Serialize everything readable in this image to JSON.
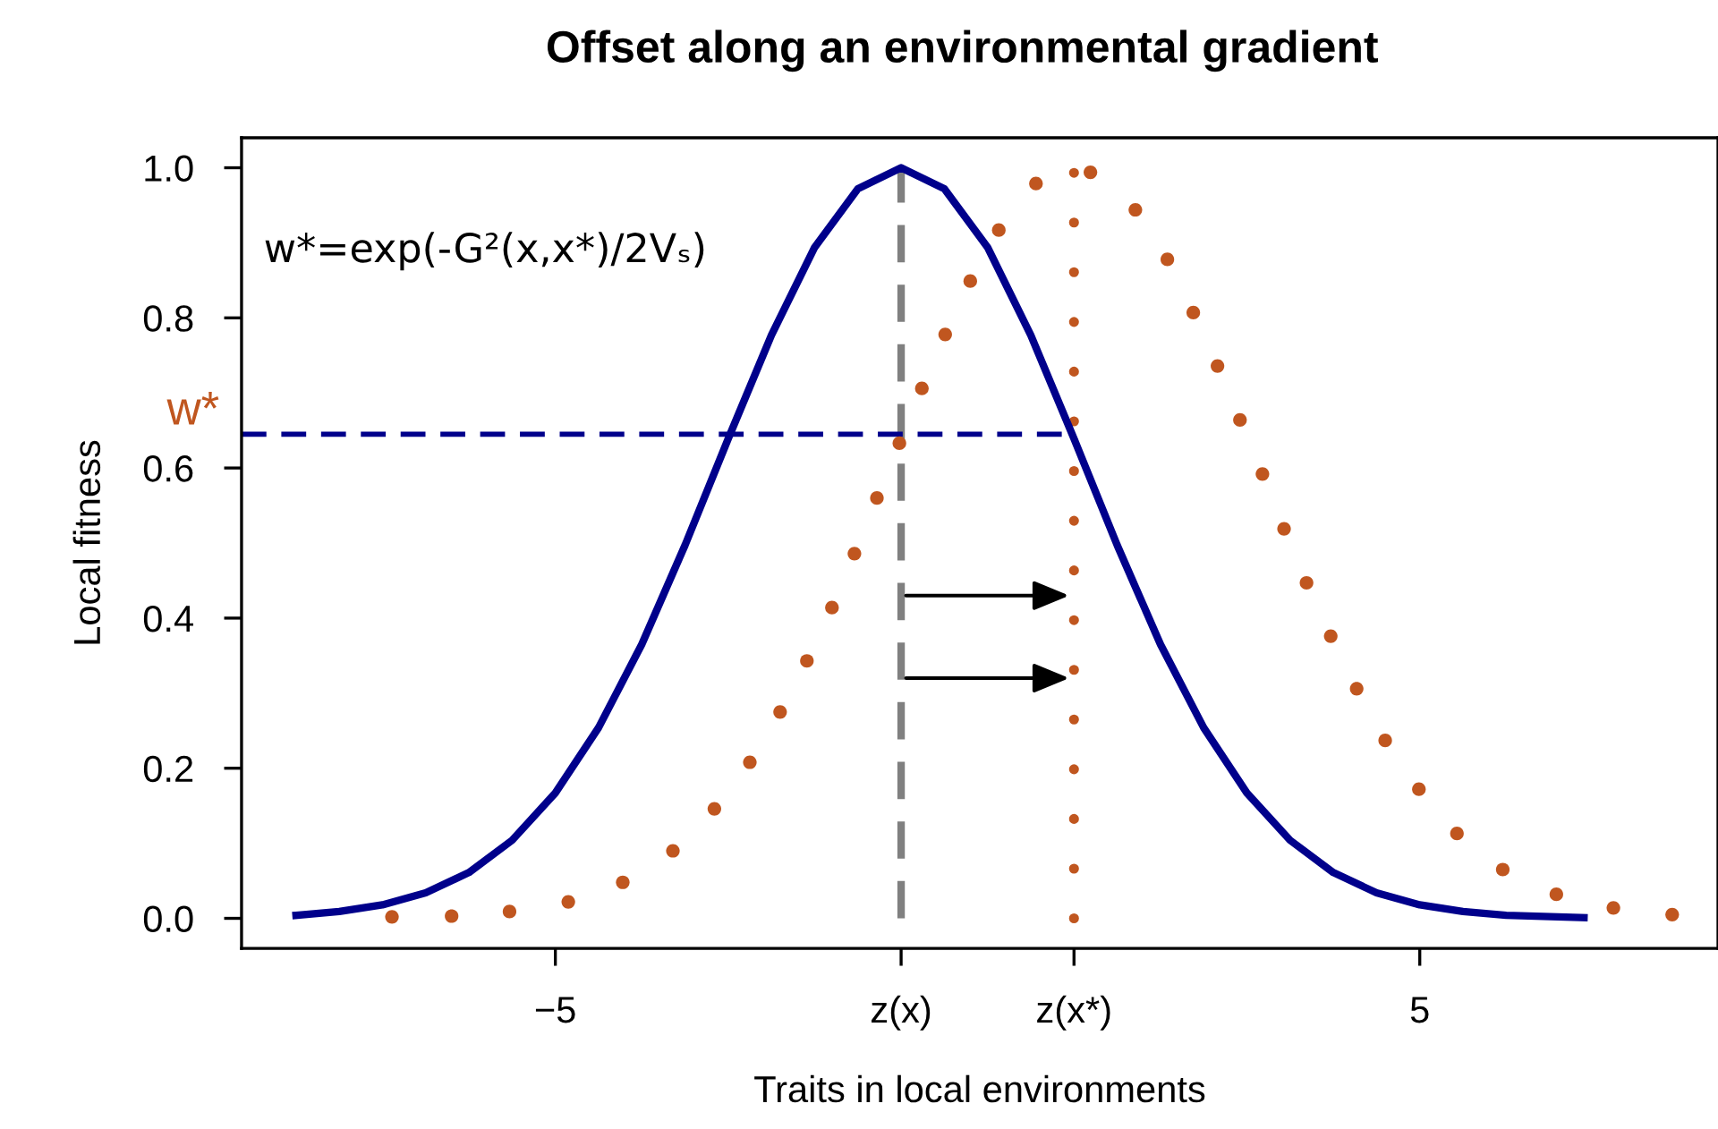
{
  "chart_data": {
    "type": "line",
    "title": "Offset along an environmental gradient",
    "xlabel": "Traits in local environments",
    "ylabel": "Local fitness",
    "annotations": [
      "w*=exp(-G²(x,x*)/2Vₛ)"
    ],
    "series": [
      {
        "color": "#00008b",
        "line_style": "solid",
        "marker": "none",
        "x": [
          -8,
          -7.5,
          -7,
          -6.5,
          -6,
          -5.5,
          -5,
          -4.5,
          -4,
          -3.5,
          -3,
          -2.5,
          -2,
          -1.5,
          -1,
          -0.5,
          0,
          0.5,
          1,
          1.5,
          2,
          2.5,
          3,
          3.5,
          4,
          4.5,
          5,
          5.5,
          6,
          6.9
        ],
        "values": [
          0.004,
          0.009,
          0.018,
          0.034,
          0.061,
          0.104,
          0.167,
          0.254,
          0.365,
          0.497,
          0.639,
          0.777,
          0.894,
          0.972,
          1.0,
          0.972,
          0.894,
          0.777,
          0.639,
          0.497,
          0.365,
          0.254,
          0.167,
          0.104,
          0.061,
          0.034,
          0.018,
          0.009,
          0.004,
          0.001
        ]
      },
      {
        "type": "scatter",
        "color": "#c0561f",
        "marker": "circle",
        "x": [
          -6.89,
          -6.2,
          -5.53,
          -4.85,
          -4.22,
          -3.64,
          -3.16,
          -2.75,
          -2.4,
          -2.09,
          -1.8,
          -1.54,
          -1.28,
          -1.02,
          -0.76,
          -0.49,
          -0.2,
          0.13,
          0.56,
          1.19,
          1.71,
          2.08,
          2.38,
          2.66,
          2.92,
          3.18,
          3.43,
          3.69,
          3.97,
          4.27,
          4.6,
          4.99,
          5.43,
          5.96,
          6.58,
          7.24,
          7.92
        ],
        "values": [
          0.002,
          0.003,
          0.009,
          0.022,
          0.048,
          0.09,
          0.146,
          0.208,
          0.275,
          0.343,
          0.414,
          0.486,
          0.56,
          0.633,
          0.706,
          0.778,
          0.849,
          0.917,
          0.979,
          0.994,
          0.944,
          0.878,
          0.807,
          0.736,
          0.664,
          0.592,
          0.519,
          0.447,
          0.376,
          0.306,
          0.237,
          0.172,
          0.113,
          0.065,
          0.032,
          0.014,
          0.005
        ]
      }
    ],
    "ref_lines": [
      {
        "axis": "x",
        "value": -1,
        "color": "#808080",
        "line_style": "dashed"
      },
      {
        "axis": "x",
        "value": 1,
        "color": "#c0561f",
        "line_style": "dotted"
      },
      {
        "axis": "y",
        "value": 0.645,
        "label": "w*",
        "color": "#00008b",
        "line_style": "dashed"
      }
    ],
    "xlim": [
      -8.63,
      8.45
    ],
    "ylim": [
      -0.04,
      1.04
    ],
    "xticks": [
      {
        "value": -5,
        "label": "−5"
      },
      {
        "value": -1,
        "label": "z(x)"
      },
      {
        "value": 1,
        "label": "z(x*)"
      },
      5
    ],
    "yticks": [
      {
        "value": 0,
        "label": "0.0"
      },
      {
        "value": 0.2,
        "label": "0.2"
      },
      {
        "value": 0.4,
        "label": "0.4"
      },
      {
        "value": 0.6,
        "label": "0.6"
      },
      {
        "value": 0.8,
        "label": "0.8"
      },
      {
        "value": 1,
        "label": "1.0"
      }
    ],
    "grid": false,
    "legend": false
  }
}
